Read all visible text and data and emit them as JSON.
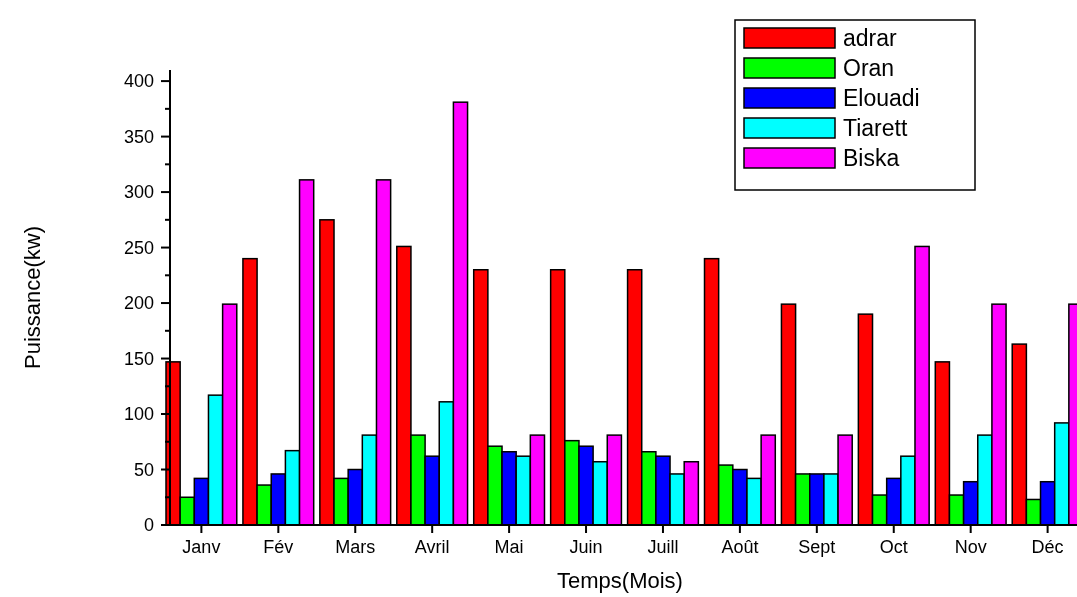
{
  "chart_data": {
    "type": "bar",
    "xlabel": "Temps(Mois)",
    "ylabel": "Puissance(kw)",
    "categories": [
      "Janv",
      "Fév",
      "Mars",
      "Avril",
      "Mai",
      "Juin",
      "Juill",
      "Août",
      "Sept",
      "Oct",
      "Nov",
      "Déc"
    ],
    "series": [
      {
        "name": "adrar",
        "color": "#ff0000",
        "values": [
          147,
          240,
          275,
          251,
          230,
          230,
          230,
          240,
          199,
          190,
          147,
          163
        ]
      },
      {
        "name": "Oran",
        "color": "#00ff00",
        "values": [
          25,
          36,
          42,
          81,
          71,
          76,
          66,
          54,
          46,
          27,
          27,
          23
        ]
      },
      {
        "name": "Elouadi",
        "color": "#0000ff",
        "values": [
          42,
          46,
          50,
          62,
          66,
          71,
          62,
          50,
          46,
          42,
          39,
          39
        ]
      },
      {
        "name": "Tiarett",
        "color": "#00ffff",
        "values": [
          117,
          67,
          81,
          111,
          62,
          57,
          46,
          42,
          46,
          62,
          81,
          92
        ]
      },
      {
        "name": "Biska",
        "color": "#ff00ff",
        "values": [
          199,
          311,
          311,
          381,
          81,
          81,
          57,
          81,
          81,
          251,
          199,
          199
        ]
      }
    ],
    "ylim": [
      0,
      410
    ],
    "yticks": [
      0,
      {
        "value": 25,
        "label": null
      },
      50,
      {
        "value": 75,
        "label": null
      },
      100,
      {
        "value": 125,
        "label": null
      },
      150,
      {
        "value": 175,
        "label": null
      },
      200,
      {
        "value": 225,
        "label": null
      },
      250,
      {
        "value": 275,
        "label": null
      },
      300,
      {
        "value": 325,
        "label": null
      },
      350,
      {
        "value": 375,
        "label": null
      },
      400
    ],
    "grid": false,
    "legend": "top right"
  }
}
